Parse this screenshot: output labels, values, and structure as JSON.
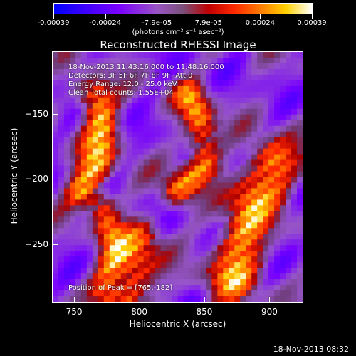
{
  "colorbar": {
    "tick_labels": [
      "-0.00039",
      "-0.00024",
      "-7.9e-05",
      "7.9e-05",
      "0.00024",
      "0.00039"
    ],
    "units_label": "(photons cm⁻² s⁻¹ asec⁻²)",
    "range": [
      -0.00039,
      0.00039
    ]
  },
  "chart_data": {
    "type": "heatmap",
    "title": "Reconstructed RHESSI Image",
    "xlabel": "Heliocentric X (arcsec)",
    "ylabel": "Heliocentric Y (arcsec)",
    "xlim": [
      733,
      926
    ],
    "ylim": [
      -295,
      -102
    ],
    "x_ticks": [
      750,
      800,
      850,
      900
    ],
    "y_ticks": [
      -150,
      -200,
      -250
    ],
    "annotations": [
      "18-Nov-2013 11:43:16.000 to 11:48:16.000",
      "Detectors: 3F 5F 6F 7F 8F 9F, Att 0",
      "Energy Range: 12.0 - 25.0 keV",
      "Clean    Total counts: 1.55E+04"
    ],
    "peak_label": "Position of Peak = [765,-182]",
    "peak": [
      765,
      -182
    ]
  },
  "timestamp": "18-Nov-2013 08:32"
}
